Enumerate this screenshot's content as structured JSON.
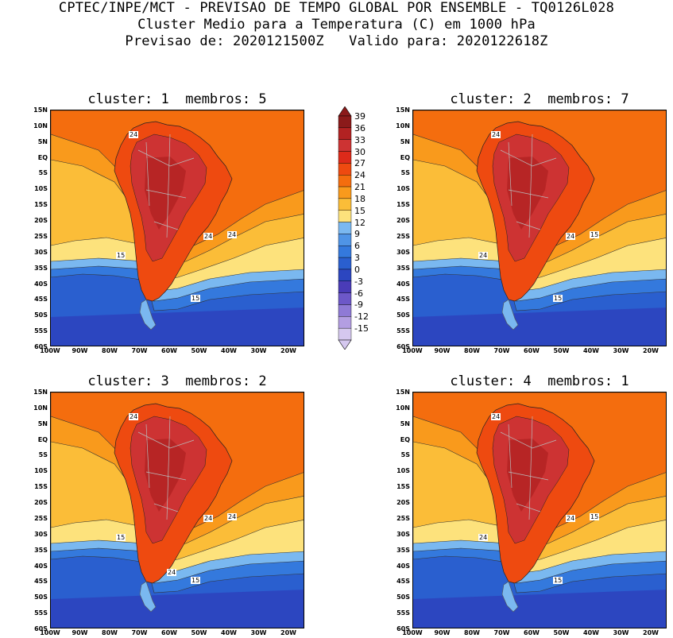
{
  "header": {
    "line1": "CPTEC/INPE/MCT - PREVISAO DE TEMPO GLOBAL POR ENSEMBLE - TQ0126L028",
    "line2": "Cluster Medio para a Temperatura (C) em 1000 hPa",
    "line3": "Previsao de: 2020121500Z   Valido para: 2020122618Z"
  },
  "panels": [
    {
      "title": "cluster: 1  membros: 5",
      "contour_labels": [
        "24",
        "24",
        "24",
        "15",
        "15"
      ]
    },
    {
      "title": "cluster: 2  membros: 7",
      "contour_labels": [
        "24",
        "24",
        "15",
        "24",
        "15"
      ]
    },
    {
      "title": "cluster: 3  membros: 2",
      "contour_labels": [
        "24",
        "24",
        "24",
        "15",
        "15",
        "24"
      ]
    },
    {
      "title": "cluster: 4  membros: 1",
      "contour_labels": [
        "24",
        "24",
        "15",
        "24",
        "15"
      ]
    }
  ],
  "lat_ticks": [
    "15N",
    "10N",
    "5N",
    "EQ",
    "5S",
    "10S",
    "15S",
    "20S",
    "25S",
    "30S",
    "35S",
    "40S",
    "45S",
    "50S",
    "55S",
    "60S"
  ],
  "lon_ticks": [
    "100W",
    "90W",
    "80W",
    "70W",
    "60W",
    "50W",
    "40W",
    "30W",
    "20W"
  ],
  "colorbar": {
    "labels": [
      "39",
      "36",
      "33",
      "30",
      "27",
      "24",
      "21",
      "18",
      "15",
      "12",
      "9",
      "6",
      "3",
      "0",
      "-3",
      "-6",
      "-9",
      "-12",
      "-15"
    ],
    "colors": [
      "#8b1a1a",
      "#b22222",
      "#cd3333",
      "#dd2a1a",
      "#ee4a10",
      "#f46d0e",
      "#f99a1c",
      "#fbbd38",
      "#fde27c",
      "#7ab8f0",
      "#4f94e6",
      "#3479dd",
      "#2a5fcf",
      "#2c46c0",
      "#4a3cb8",
      "#6d58c8",
      "#8f7ad6",
      "#b39ee2",
      "#d5c8ef"
    ]
  }
}
